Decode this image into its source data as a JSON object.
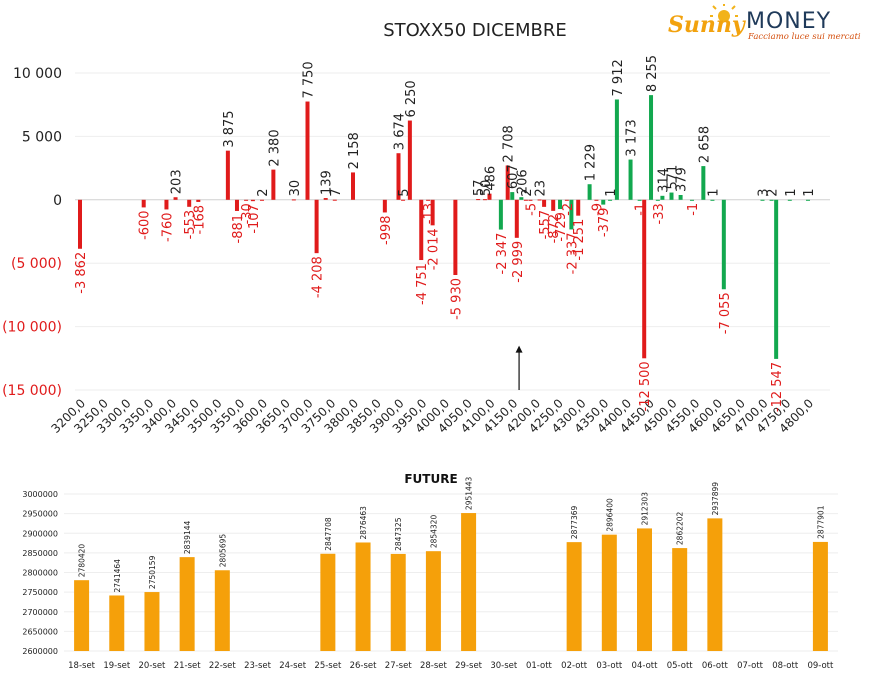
{
  "logo": {
    "brand_sunny": "Sunny",
    "brand_money": "MONEY",
    "tagline": "Facciamo luce sui mercati",
    "colors": {
      "sunny": "#f2a20e",
      "money": "#1f3a5a",
      "tagline": "#d4500f"
    }
  },
  "chart_data": [
    {
      "type": "bar",
      "title": "STOXX50 DICEMBRE",
      "colors": {
        "put": "#e01b1b",
        "call": "#12a84f",
        "neg_tick": "#e01b1b",
        "pos_tick": "#222222"
      },
      "yticks": [
        10000,
        5000,
        0,
        -5000,
        -10000,
        -15000
      ],
      "ytick_labels": [
        "10 000",
        "5 000",
        "0",
        "(5 000)",
        "(10 000)",
        "(15 000)"
      ],
      "ylim": [
        -15000,
        10000
      ],
      "categories": [
        "3200,0",
        "3250,0",
        "3300,0",
        "3350,0",
        "3400,0",
        "3450,0",
        "3500,0",
        "3550,0",
        "3600,0",
        "3650,0",
        "3700,0",
        "3750,0",
        "3800,0",
        "3850,0",
        "3900,0",
        "3950,0",
        "4000,0",
        "4050,0",
        "4100,0",
        "4150,0",
        "4200,0",
        "4250,0",
        "4300,0",
        "4350,0",
        "4400,0",
        "4450,0",
        "4500,0",
        "4550,0",
        "4600,0",
        "4650,0",
        "4700,0",
        "4750,0",
        "4800,0"
      ],
      "series": [
        {
          "type": "put",
          "points": [
            {
              "x": 3200,
              "value": -3862,
              "label": "-3 862"
            },
            {
              "x": 3340,
              "value": -600,
              "label": "-600"
            },
            {
              "x": 3390,
              "value": -760,
              "label": "-760"
            },
            {
              "x": 3410,
              "value": 203,
              "label": "203"
            },
            {
              "x": 3440,
              "value": -553,
              "label": "-553"
            },
            {
              "x": 3460,
              "value": -168,
              "label": "-168"
            },
            {
              "x": 3525,
              "value": 3875,
              "label": "3 875"
            },
            {
              "x": 3545,
              "value": -881,
              "label": "-881"
            },
            {
              "x": 3565,
              "value": -30,
              "label": "-30"
            },
            {
              "x": 3580,
              "value": -107,
              "label": "-107"
            },
            {
              "x": 3600,
              "value": 2,
              "label": "2"
            },
            {
              "x": 3625,
              "value": 2380,
              "label": "2 380"
            },
            {
              "x": 3670,
              "value": 30,
              "label": "30"
            },
            {
              "x": 3700,
              "value": 7750,
              "label": "7 750"
            },
            {
              "x": 3720,
              "value": -4208,
              "label": "-4 208"
            },
            {
              "x": 3740,
              "value": 139,
              "label": "139"
            },
            {
              "x": 3760,
              "value": 7,
              "label": "7"
            },
            {
              "x": 3800,
              "value": 2158,
              "label": "2 158"
            },
            {
              "x": 3870,
              "value": -998,
              "label": "-998"
            },
            {
              "x": 3900,
              "value": 3674,
              "label": "3 674"
            },
            {
              "x": 3910,
              "value": 5,
              "label": "5"
            },
            {
              "x": 3925,
              "value": 6250,
              "label": "6 250"
            },
            {
              "x": 3950,
              "value": -4751,
              "label": "-4 751"
            },
            {
              "x": 3965,
              "value": -13,
              "label": "-13"
            },
            {
              "x": 3975,
              "value": -2014,
              "label": "-2 014"
            },
            {
              "x": 4025,
              "value": -5930,
              "label": "-5 930"
            },
            {
              "x": 4075,
              "value": 57,
              "label": "57"
            },
            {
              "x": 4090,
              "value": 50,
              "label": "50"
            },
            {
              "x": 4100,
              "value": 486,
              "label": "486"
            },
            {
              "x": 4140,
              "value": 2708,
              "label": "2 708"
            },
            {
              "x": 4160,
              "value": -2999,
              "label": "-2 999"
            },
            {
              "x": 4180,
              "value": 2,
              "label": "2"
            },
            {
              "x": 4190,
              "value": -5,
              "label": "-5"
            },
            {
              "x": 4210,
              "value": 23,
              "label": "23"
            },
            {
              "x": 4220,
              "value": -557,
              "label": "-557"
            },
            {
              "x": 4240,
              "value": -872,
              "label": "-872"
            },
            {
              "x": 4270,
              "value": -2,
              "label": "-2"
            },
            {
              "x": 4295,
              "value": -1251,
              "label": "-1 251"
            },
            {
              "x": 4335,
              "value": -9,
              "label": "-9"
            },
            {
              "x": 4440,
              "value": -12500,
              "label": "-12 500"
            }
          ]
        },
        {
          "type": "call",
          "points": [
            {
              "x": 4125,
              "value": -2347,
              "label": "-2 347"
            },
            {
              "x": 4150,
              "value": 607,
              "label": "607"
            },
            {
              "x": 4170,
              "value": 206,
              "label": "206"
            },
            {
              "x": 4255,
              "value": -729,
              "label": "-729"
            },
            {
              "x": 4280,
              "value": -2337,
              "label": "-2 337"
            },
            {
              "x": 4320,
              "value": 1229,
              "label": "1 229"
            },
            {
              "x": 4350,
              "value": -379,
              "label": "-379"
            },
            {
              "x": 4365,
              "value": 1,
              "label": "1"
            },
            {
              "x": 4380,
              "value": 7912,
              "label": "7 912"
            },
            {
              "x": 4410,
              "value": 3173,
              "label": "3 173"
            },
            {
              "x": 4430,
              "value": -1,
              "label": "-1"
            },
            {
              "x": 4455,
              "value": 8255,
              "label": "8 255"
            },
            {
              "x": 4470,
              "value": -33,
              "label": "-33"
            },
            {
              "x": 4480,
              "value": 314,
              "label": "314"
            },
            {
              "x": 4500,
              "value": 571,
              "label": "571"
            },
            {
              "x": 4520,
              "value": 379,
              "label": "379"
            },
            {
              "x": 4545,
              "value": -1,
              "label": "-1"
            },
            {
              "x": 4570,
              "value": 2658,
              "label": "2 658"
            },
            {
              "x": 4590,
              "value": 1,
              "label": "1"
            },
            {
              "x": 4615,
              "value": -7055,
              "label": "-7 055"
            },
            {
              "x": 4700,
              "value": 3,
              "label": "3"
            },
            {
              "x": 4720,
              "value": 2,
              "label": "2"
            },
            {
              "x": 4730,
              "value": -12547,
              "label": "-12 547"
            },
            {
              "x": 4760,
              "value": 1,
              "label": "1"
            },
            {
              "x": 4800,
              "value": 1,
              "label": "1"
            }
          ]
        }
      ],
      "annotation": {
        "type": "arrow",
        "direction": "up",
        "x": 4165,
        "y_from": -15000,
        "y_to": -11500
      }
    },
    {
      "type": "bar",
      "title": "FUTURE",
      "color": "#f5a00a",
      "ylim": [
        2600000,
        3000000
      ],
      "yticks": [
        2600000,
        2650000,
        2700000,
        2750000,
        2800000,
        2850000,
        2900000,
        2950000,
        3000000
      ],
      "categories": [
        "18-set",
        "19-set",
        "20-set",
        "21-set",
        "22-set",
        "23-set",
        "24-set",
        "25-set",
        "26-set",
        "27-set",
        "28-set",
        "29-set",
        "30-set",
        "01-ott",
        "02-ott",
        "03-ott",
        "04-ott",
        "05-ott",
        "06-ott",
        "07-ott",
        "08-ott",
        "09-ott"
      ],
      "values": [
        2780420,
        2741464,
        2750159,
        2839144,
        2805695,
        null,
        null,
        2847708,
        2876463,
        2847325,
        2854320,
        2951443,
        null,
        null,
        2877369,
        2896400,
        2912303,
        2862202,
        2937899,
        null,
        null,
        2877901
      ],
      "labels": [
        "2780420",
        "2741464",
        "2750159",
        "2839144",
        "2805695",
        "",
        "",
        "2847708",
        "2876463",
        "2847325",
        "2854320",
        "2951443",
        "",
        "",
        "2877369",
        "2896400",
        "2912303",
        "2862202",
        "2937899",
        "",
        "",
        "2877901"
      ]
    }
  ]
}
